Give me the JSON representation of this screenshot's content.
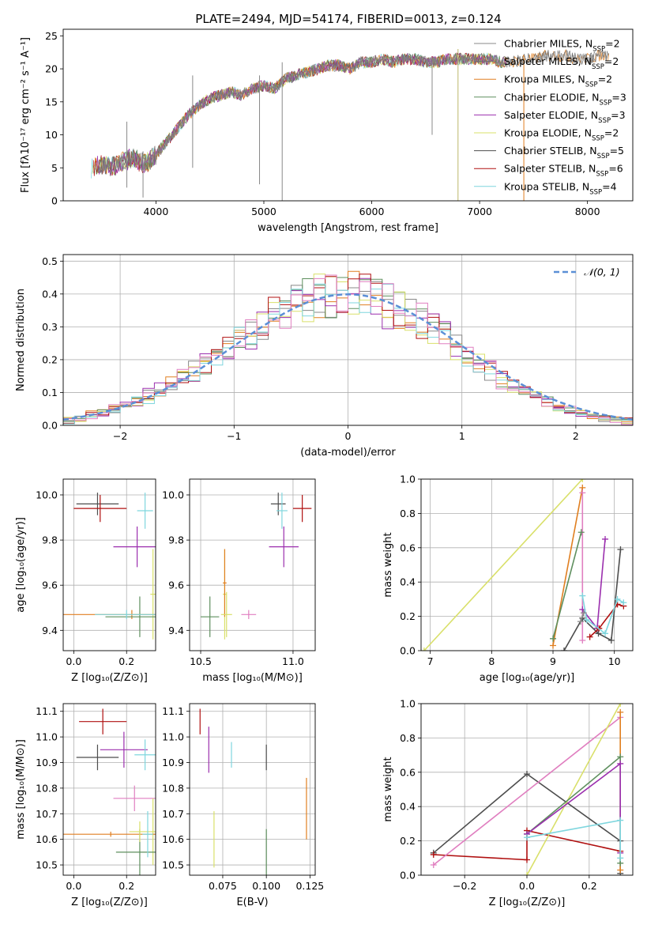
{
  "figure_title": "PLATE=2494, MJD=54174, FIBERID=0013, z=0.124",
  "colors": {
    "Chabrier MILES": "#888888",
    "Salpeter MILES": "#6f6f6f",
    "Kroupa MILES": "#e07f20",
    "Chabrier ELODIE": "#5e8f5e",
    "Salpeter ELODIE": "#9b2fae",
    "Kroupa ELODIE": "#d9e06a",
    "Chabrier STELIB": "#4d4d4d",
    "Salpeter STELIB": "#b01010",
    "Kroupa STELIB": "#7fd6de",
    "pink": "#e07fc0",
    "normal": "#5b8fd6"
  },
  "chart_data": [
    {
      "id": "spectrum",
      "type": "line",
      "title": "PLATE=2494, MJD=54174, FIBERID=0013, z=0.124",
      "xlabel": "wavelength [Angstrom, rest frame]",
      "ylabel": "Flux [fλ10⁻¹⁷ erg cm⁻² s⁻¹ A⁻¹]",
      "xlim": [
        3140,
        8420
      ],
      "ylim": [
        0,
        26
      ],
      "xticks": [
        4000,
        5000,
        6000,
        7000,
        8000
      ],
      "yticks": [
        0,
        5,
        10,
        15,
        20,
        25
      ],
      "legend": [
        "Chabrier MILES, Nₛₛₚ=2",
        "Salpeter MILES, Nₛₛₚ=2",
        "Kroupa MILES, Nₛₛₚ=2",
        "Chabrier ELODIE, Nₛₛₚ=3",
        "Salpeter ELODIE, Nₛₛₚ=3",
        "Kroupa ELODIE, Nₛₛₚ=2",
        "Chabrier STELIB, Nₛₛₚ=5",
        "Salpeter STELIB, Nₛₛₚ=6",
        "Kroupa STELIB, Nₛₛₚ=4"
      ],
      "legend_labels": [
        {
          "model": "Chabrier MILES",
          "n": "2"
        },
        {
          "model": "Salpeter MILES",
          "n": "2"
        },
        {
          "model": "Kroupa MILES",
          "n": "2"
        },
        {
          "model": "Chabrier ELODIE",
          "n": "3"
        },
        {
          "model": "Salpeter ELODIE",
          "n": "3"
        },
        {
          "model": "Kroupa ELODIE",
          "n": "2"
        },
        {
          "model": "Chabrier STELIB",
          "n": "5"
        },
        {
          "model": "Salpeter STELIB",
          "n": "6"
        },
        {
          "model": "Kroupa STELIB",
          "n": "4"
        }
      ],
      "legend_position": "right",
      "continuum": {
        "x": [
          3400,
          3500,
          3600,
          3700,
          3800,
          3900,
          4000,
          4100,
          4200,
          4300,
          4400,
          4500,
          4600,
          4700,
          4800,
          4900,
          5000,
          5100,
          5200,
          5300,
          5400,
          5500,
          5600,
          5700,
          5800,
          5900,
          6000,
          6100,
          6200,
          6300,
          6400,
          6500,
          6600,
          6700,
          6800,
          6900,
          7000,
          7100,
          7200,
          7300,
          7400,
          7500,
          7600,
          7700,
          7800,
          7900,
          8000,
          8100,
          8200
        ],
        "y": [
          5.0,
          5.5,
          5.2,
          6.0,
          6.5,
          5.5,
          7.0,
          9.0,
          11.0,
          13.0,
          14.5,
          15.5,
          16.0,
          16.5,
          16.0,
          17.0,
          17.5,
          17.0,
          18.5,
          19.0,
          19.5,
          20.0,
          20.5,
          20.5,
          20.0,
          21.0,
          21.0,
          21.5,
          21.0,
          21.5,
          21.5,
          21.0,
          21.0,
          21.5,
          21.5,
          21.5,
          21.5,
          21.5,
          21.0,
          21.0,
          21.5,
          21.5,
          22.0,
          22.0,
          22.0,
          21.5,
          21.5,
          22.0,
          22.0
        ]
      },
      "spikes": [
        {
          "x": 3730,
          "ymin": 2.0,
          "ymax": 12.0
        },
        {
          "x": 3880,
          "ymin": 0.5,
          "ymax": 7.5
        },
        {
          "x": 4340,
          "ymin": 5.0,
          "ymax": 19.0
        },
        {
          "x": 4960,
          "ymin": 2.5,
          "ymax": 19.0
        },
        {
          "x": 5170,
          "ymin": 0.0,
          "ymax": 21.0
        },
        {
          "x": 6560,
          "ymin": 10.0,
          "ymax": 21.0
        },
        {
          "x": 6800,
          "ymin": 0.0,
          "ymax": 23.0
        },
        {
          "x": 7410,
          "ymin": 0.0,
          "ymax": 22.0
        }
      ]
    },
    {
      "id": "residuals",
      "type": "line",
      "xlabel": "(data-model)/error",
      "ylabel": "Normed distribution",
      "xlim": [
        -2.5,
        2.5
      ],
      "ylim": [
        0,
        0.52
      ],
      "xticks": [
        -2,
        -1,
        0,
        1,
        2
      ],
      "yticks": [
        0.0,
        0.1,
        0.2,
        0.3,
        0.4,
        0.5
      ],
      "legend": [
        "𝒩(0, 1)"
      ],
      "legend_position": "upper right",
      "grid": true,
      "bin_width": 0.1,
      "bin_start": -2.5,
      "hist_base": [
        0.017,
        0.022,
        0.029,
        0.037,
        0.047,
        0.058,
        0.072,
        0.088,
        0.105,
        0.125,
        0.146,
        0.168,
        0.192,
        0.216,
        0.241,
        0.266,
        0.29,
        0.312,
        0.333,
        0.352,
        0.368,
        0.381,
        0.391,
        0.397,
        0.399,
        0.397,
        0.391,
        0.381,
        0.368,
        0.352,
        0.333,
        0.312,
        0.29,
        0.266,
        0.241,
        0.216,
        0.192,
        0.168,
        0.146,
        0.125,
        0.105,
        0.088,
        0.072,
        0.058,
        0.047,
        0.037,
        0.029,
        0.022,
        0.017,
        0.013
      ],
      "hist_series": [
        "Chabrier MILES",
        "Kroupa MILES",
        "Chabrier ELODIE",
        "Salpeter ELODIE",
        "Kroupa ELODIE",
        "Salpeter STELIB",
        "Kroupa STELIB",
        "pink"
      ],
      "normal_curve": {
        "mean": 0,
        "sigma": 1
      }
    },
    {
      "id": "age-vs-Z",
      "type": "scatter",
      "xlabel": "Z [log₁₀(Z/Z⊙)]",
      "ylabel": "age  [log₁₀(age/yr)]",
      "xlim": [
        -0.04,
        0.31
      ],
      "ylim": [
        9.31,
        10.07
      ],
      "xticks": [
        0.0,
        0.2
      ],
      "yticks": [
        9.4,
        9.6,
        9.8,
        10.0
      ],
      "grid": true,
      "points": [
        {
          "series": "Chabrier STELIB",
          "x": 0.09,
          "y": 9.96,
          "xerr": 0.08,
          "yerr": 0.05
        },
        {
          "series": "Salpeter STELIB",
          "x": 0.1,
          "y": 9.94,
          "xerr": 0.1,
          "yerr": 0.06
        },
        {
          "series": "Kroupa STELIB",
          "x": 0.27,
          "y": 9.93,
          "xerr": 0.03,
          "yerr": 0.08
        },
        {
          "series": "Salpeter ELODIE",
          "x": 0.24,
          "y": 9.77,
          "xerr": 0.09,
          "yerr": 0.09
        },
        {
          "series": "Kroupa ELODIE",
          "x": 0.3,
          "y": 9.56,
          "xerr": 0.01,
          "yerr": 0.2
        },
        {
          "series": "Kroupa MILES",
          "x": 0.22,
          "y": 9.47,
          "xerr": 0.3,
          "yerr": 0.02
        },
        {
          "series": "Chabrier ELODIE",
          "x": 0.25,
          "y": 9.46,
          "xerr": 0.13,
          "yerr": 0.09
        },
        {
          "series": "Kroupa STELIB",
          "x": 0.2,
          "y": 9.47,
          "xerr": 0.12,
          "yerr": 0.02
        }
      ]
    },
    {
      "id": "age-vs-mass",
      "type": "scatter",
      "xlabel": "mass [log₁₀(M/M⊙)]",
      "xlim": [
        10.44,
        11.12
      ],
      "ylim": [
        9.31,
        10.07
      ],
      "xticks": [
        10.5,
        11.0
      ],
      "yticks": [
        9.4,
        9.6,
        9.8,
        10.0
      ],
      "grid": true,
      "points": [
        {
          "series": "Chabrier STELIB",
          "x": 10.92,
          "y": 9.96,
          "xerr": 0.04,
          "yerr": 0.05
        },
        {
          "series": "Salpeter STELIB",
          "x": 11.05,
          "y": 9.94,
          "xerr": 0.05,
          "yerr": 0.06
        },
        {
          "series": "Kroupa STELIB",
          "x": 10.94,
          "y": 9.93,
          "xerr": 0.03,
          "yerr": 0.08
        },
        {
          "series": "Salpeter ELODIE",
          "x": 10.95,
          "y": 9.77,
          "xerr": 0.08,
          "yerr": 0.09
        },
        {
          "series": "Kroupa ELODIE",
          "x": 10.63,
          "y": 9.56,
          "xerr": 0.01,
          "yerr": 0.2
        },
        {
          "series": "Kroupa MILES",
          "x": 10.63,
          "y": 9.61,
          "xerr": 0.01,
          "yerr": 0.15
        },
        {
          "series": "Chabrier ELODIE",
          "x": 10.55,
          "y": 9.46,
          "xerr": 0.05,
          "yerr": 0.09
        },
        {
          "series": "pink",
          "x": 10.76,
          "y": 9.47,
          "xerr": 0.04,
          "yerr": 0.02
        },
        {
          "series": "Kroupa ELODIE",
          "x": 10.64,
          "y": 9.47,
          "xerr": 0.03,
          "yerr": 0.1
        }
      ]
    },
    {
      "id": "massweight-vs-age",
      "type": "line",
      "xlabel": "age  [log₁₀(age/yr)]",
      "ylabel": "mass weight",
      "xlim": [
        6.85,
        10.3
      ],
      "ylim": [
        0,
        1.0
      ],
      "xticks": [
        7,
        8,
        9,
        10
      ],
      "yticks": [
        0.0,
        0.2,
        0.4,
        0.6,
        0.8,
        1.0
      ],
      "grid": true,
      "series": [
        {
          "name": "Kroupa ELODIE",
          "x": [
            6.9,
            9.48
          ],
          "y": [
            0.0,
            1.0
          ]
        },
        {
          "name": "Kroupa MILES",
          "x": [
            9.0,
            9.48
          ],
          "y": [
            0.03,
            0.95
          ]
        },
        {
          "name": "pink",
          "x": [
            9.48,
            9.48
          ],
          "y": [
            0.06,
            0.92
          ]
        },
        {
          "name": "Chabrier ELODIE",
          "x": [
            9.0,
            9.46
          ],
          "y": [
            0.07,
            0.69
          ]
        },
        {
          "name": "Salpeter ELODIE",
          "x": [
            9.48,
            9.72,
            9.85
          ],
          "y": [
            0.24,
            0.13,
            0.65
          ]
        },
        {
          "name": "Chabrier STELIB",
          "x": [
            9.18,
            9.48,
            9.74,
            9.95,
            10.1
          ],
          "y": [
            0.0,
            0.19,
            0.1,
            0.06,
            0.59
          ]
        },
        {
          "name": "Salpeter STELIB",
          "x": [
            9.6,
            9.75,
            10.05,
            10.15
          ],
          "y": [
            0.08,
            0.13,
            0.27,
            0.26
          ]
        },
        {
          "name": "Kroupa STELIB",
          "x": [
            9.48,
            9.55,
            9.85,
            10.05,
            10.15
          ],
          "y": [
            0.32,
            0.18,
            0.1,
            0.3,
            0.28
          ]
        },
        {
          "name": "Chabrier MILES",
          "x": [
            9.45,
            9.5
          ],
          "y": [
            0.17,
            0.22
          ]
        }
      ]
    },
    {
      "id": "mass-vs-Z",
      "type": "scatter",
      "xlabel": "Z [log₁₀(Z/Z⊙)]",
      "ylabel": "mass [log₁₀(M/M⊙)]",
      "xlim": [
        -0.04,
        0.31
      ],
      "ylim": [
        10.46,
        11.13
      ],
      "xticks": [
        0.0,
        0.2
      ],
      "yticks": [
        10.5,
        10.6,
        10.7,
        10.8,
        10.9,
        11.0,
        11.1
      ],
      "grid": true,
      "points": [
        {
          "series": "Salpeter STELIB",
          "x": 0.11,
          "y": 11.06,
          "xerr": 0.09,
          "yerr": 0.05
        },
        {
          "series": "Salpeter ELODIE",
          "x": 0.19,
          "y": 10.95,
          "xerr": 0.09,
          "yerr": 0.07
        },
        {
          "series": "Kroupa STELIB",
          "x": 0.27,
          "y": 10.93,
          "xerr": 0.04,
          "yerr": 0.06
        },
        {
          "series": "Chabrier STELIB",
          "x": 0.09,
          "y": 10.92,
          "xerr": 0.08,
          "yerr": 0.05
        },
        {
          "series": "pink",
          "x": 0.23,
          "y": 10.76,
          "xerr": 0.08,
          "yerr": 0.05
        },
        {
          "series": "Kroupa ELODIE",
          "x": 0.3,
          "y": 10.63,
          "xerr": 0.01,
          "yerr": 0.13
        },
        {
          "series": "Kroupa MILES",
          "x": 0.14,
          "y": 10.62,
          "xerr": 0.3,
          "yerr": 0.01
        },
        {
          "series": "Chabrier ELODIE",
          "x": 0.25,
          "y": 10.55,
          "xerr": 0.09,
          "yerr": 0.09
        },
        {
          "series": "Kroupa ELODIE",
          "x": 0.25,
          "y": 10.63,
          "xerr": 0.04,
          "yerr": 0.04
        },
        {
          "series": "Kroupa STELIB",
          "x": 0.28,
          "y": 10.62,
          "xerr": 0.02,
          "yerr": 0.09
        }
      ]
    },
    {
      "id": "mass-vs-EBV",
      "type": "scatter",
      "xlabel": "E(B-V)",
      "xlim": [
        0.056,
        0.128
      ],
      "ylim": [
        10.46,
        11.13
      ],
      "xticks": [
        0.075,
        0.1,
        0.125
      ],
      "yticks": [
        10.5,
        10.6,
        10.7,
        10.8,
        10.9,
        11.0,
        11.1
      ],
      "grid": true,
      "points": [
        {
          "series": "Salpeter STELIB",
          "x": 0.062,
          "y": 11.06,
          "xerr": 0.0,
          "yerr": 0.05
        },
        {
          "series": "Salpeter ELODIE",
          "x": 0.067,
          "y": 10.95,
          "xerr": 0.0,
          "yerr": 0.09
        },
        {
          "series": "Kroupa STELIB",
          "x": 0.08,
          "y": 10.93,
          "xerr": 0.0,
          "yerr": 0.05
        },
        {
          "series": "Chabrier STELIB",
          "x": 0.1,
          "y": 10.92,
          "xerr": 0.0,
          "yerr": 0.05
        },
        {
          "series": "Kroupa ELODIE",
          "x": 0.07,
          "y": 10.6,
          "xerr": 0.0,
          "yerr": 0.11
        },
        {
          "series": "Chabrier ELODIE",
          "x": 0.1,
          "y": 10.55,
          "xerr": 0.0,
          "yerr": 0.09
        },
        {
          "series": "Kroupa MILES",
          "x": 0.123,
          "y": 10.72,
          "xerr": 0.0,
          "yerr": 0.12
        }
      ]
    },
    {
      "id": "massweight-vs-Z",
      "type": "line",
      "xlabel": "Z [log₁₀(Z/Z⊙)]",
      "ylabel": "mass weight",
      "xlim": [
        -0.34,
        0.34
      ],
      "ylim": [
        0,
        1.0
      ],
      "xticks": [
        -0.2,
        0.0,
        0.2
      ],
      "yticks": [
        0.0,
        0.2,
        0.4,
        0.6,
        0.8,
        1.0
      ],
      "grid": true,
      "series": [
        {
          "name": "Chabrier STELIB",
          "x": [
            -0.3,
            0.0,
            0.3,
            0.3
          ],
          "y": [
            0.13,
            0.59,
            0.2,
            0.01
          ]
        },
        {
          "name": "Salpeter STELIB",
          "x": [
            -0.3,
            0.0,
            0.0,
            0.3
          ],
          "y": [
            0.12,
            0.09,
            0.26,
            0.14
          ]
        },
        {
          "name": "pink",
          "x": [
            -0.3,
            0.3
          ],
          "y": [
            0.06,
            0.92
          ]
        },
        {
          "name": "Kroupa ELODIE",
          "x": [
            0.0,
            0.3
          ],
          "y": [
            0.0,
            1.0
          ]
        },
        {
          "name": "Kroupa MILES",
          "x": [
            0.3,
            0.3
          ],
          "y": [
            0.03,
            0.95
          ]
        },
        {
          "name": "Chabrier ELODIE",
          "x": [
            0.0,
            0.3,
            0.3
          ],
          "y": [
            0.24,
            0.69,
            0.07
          ]
        },
        {
          "name": "Salpeter ELODIE",
          "x": [
            0.0,
            0.3,
            0.3
          ],
          "y": [
            0.24,
            0.65,
            0.13
          ]
        },
        {
          "name": "Kroupa STELIB",
          "x": [
            0.0,
            0.3,
            0.3
          ],
          "y": [
            0.22,
            0.32,
            0.1
          ]
        }
      ]
    }
  ]
}
